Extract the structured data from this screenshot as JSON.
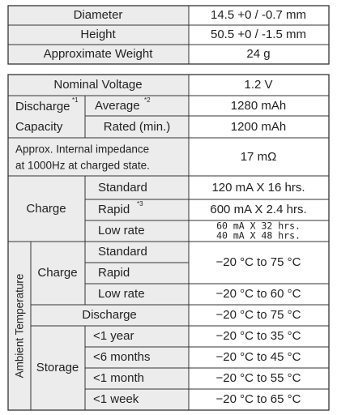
{
  "table1": {
    "rows": [
      [
        "Diameter",
        "14.5 +0 / -0.7 mm"
      ],
      [
        "Height",
        "50.5 +0 / -1.5 mm"
      ],
      [
        "Approximate Weight",
        "24 g"
      ]
    ]
  },
  "table2": {
    "nominal_voltage": {
      "label": "Nominal Voltage",
      "value": "1.2 V"
    },
    "discharge_capacity": {
      "label": "Discharge",
      "note": "*1",
      "label2": "Capacity",
      "rows": [
        {
          "label": "Average",
          "note": "*2",
          "value": "1280 mAh"
        },
        {
          "label": "Rated (min.)",
          "value": "1200 mAh"
        }
      ]
    },
    "impedance": {
      "label_lines": [
        "Approx. Internal impedance",
        "at 1000Hz at charged state."
      ],
      "value": "17 mΩ"
    },
    "charge": {
      "label": "Charge",
      "rows": [
        {
          "label": "Standard",
          "value": "120 mA X 16 hrs."
        },
        {
          "label": "Rapid",
          "note": "*3",
          "value": "600 mA X 2.4 hrs."
        },
        {
          "label": "Low rate",
          "value_lines": [
            "60 mA X 32 hrs.",
            "40 mA X 48 hrs."
          ]
        }
      ]
    },
    "ambient_temperature": {
      "label": "Ambient Temperature",
      "charge": {
        "label": "Charge",
        "rows": [
          "Standard",
          "Rapid",
          "Low rate"
        ],
        "values": [
          "−20 °C to 75 °C",
          "−20 °C to 60 °C"
        ]
      },
      "discharge": {
        "label": "Discharge",
        "value": "−20 °C to 75 °C"
      },
      "storage": {
        "label": "Storage",
        "rows": [
          "<1 year",
          "<6 months",
          "<1 month",
          "<1 week"
        ],
        "values": [
          "−20 °C to 35 °C",
          "−20 °C to 45 °C",
          "−20 °C to 55 °C",
          "−20 °C to 65 °C"
        ]
      }
    }
  }
}
